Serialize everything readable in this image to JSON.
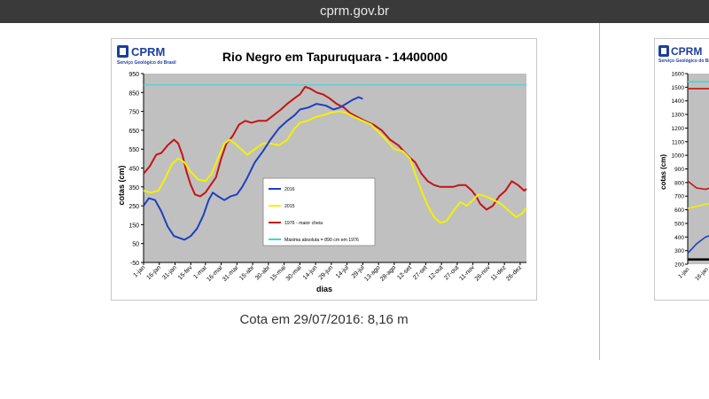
{
  "browser": {
    "url": "cprm.gov.br"
  },
  "logo": {
    "name": "CPRM",
    "subtitle": "Serviço Geológico do Brasil"
  },
  "caption": "Cota em 29/07/2016: 8,16 m",
  "colors": {
    "plot_bg": "#c0c0c0",
    "s2016": "#1f3fbf",
    "s2015": "#f2f200",
    "s1976": "#c41414",
    "smax": "#3fd6d6",
    "title": "#000000"
  },
  "chart_data": [
    {
      "type": "line",
      "title": "Rio Negro em Tapuruquara -  14400000",
      "xlabel": "dias",
      "ylabel": "cotas (cm)",
      "ylim": [
        -50,
        950
      ],
      "yticks": [
        -50,
        50,
        150,
        250,
        350,
        450,
        550,
        650,
        750,
        850,
        950
      ],
      "x_tick_labels": [
        "1-jan",
        "16-jan",
        "31-jan",
        "15-fev",
        "1-mar",
        "16-mar",
        "31-mar",
        "15-abr",
        "30-abr",
        "15-mai",
        "30-mai",
        "14-jun",
        "29-jun",
        "14-jul",
        "29-jul",
        "13-ago",
        "28-ago",
        "12-set",
        "27-set",
        "12-out",
        "27-out",
        "11-nov",
        "26-nov",
        "11-dez",
        "26-dez"
      ],
      "x_tick_days": [
        1,
        16,
        31,
        46,
        60,
        75,
        90,
        105,
        120,
        135,
        150,
        165,
        180,
        195,
        210,
        225,
        240,
        255,
        270,
        285,
        300,
        315,
        330,
        345,
        360
      ],
      "xlim": [
        1,
        366
      ],
      "grid": false,
      "legend_position": "inside-center",
      "series": [
        {
          "name": "2016",
          "color_key": "s2016",
          "points": [
            [
              1,
              250
            ],
            [
              6,
              290
            ],
            [
              12,
              280
            ],
            [
              18,
              220
            ],
            [
              24,
              140
            ],
            [
              30,
              90
            ],
            [
              35,
              80
            ],
            [
              40,
              70
            ],
            [
              46,
              90
            ],
            [
              52,
              130
            ],
            [
              58,
              200
            ],
            [
              63,
              280
            ],
            [
              67,
              320
            ],
            [
              72,
              300
            ],
            [
              78,
              280
            ],
            [
              84,
              300
            ],
            [
              90,
              310
            ],
            [
              95,
              350
            ],
            [
              100,
              400
            ],
            [
              107,
              480
            ],
            [
              115,
              540
            ],
            [
              122,
              600
            ],
            [
              130,
              660
            ],
            [
              138,
              700
            ],
            [
              145,
              730
            ],
            [
              150,
              760
            ],
            [
              158,
              770
            ],
            [
              166,
              790
            ],
            [
              175,
              780
            ],
            [
              182,
              760
            ],
            [
              188,
              770
            ],
            [
              194,
              790
            ],
            [
              200,
              810
            ],
            [
              206,
              825
            ],
            [
              210,
              816
            ]
          ]
        },
        {
          "name": "2015",
          "color_key": "s2015",
          "points": [
            [
              1,
              330
            ],
            [
              8,
              320
            ],
            [
              15,
              330
            ],
            [
              22,
              400
            ],
            [
              28,
              470
            ],
            [
              34,
              500
            ],
            [
              40,
              480
            ],
            [
              46,
              430
            ],
            [
              53,
              390
            ],
            [
              60,
              380
            ],
            [
              66,
              420
            ],
            [
              72,
              500
            ],
            [
              78,
              580
            ],
            [
              83,
              600
            ],
            [
              88,
              580
            ],
            [
              94,
              550
            ],
            [
              100,
              520
            ],
            [
              107,
              550
            ],
            [
              115,
              580
            ],
            [
              122,
              580
            ],
            [
              130,
              570
            ],
            [
              138,
              600
            ],
            [
              145,
              660
            ],
            [
              150,
              690
            ],
            [
              157,
              700
            ],
            [
              165,
              720
            ],
            [
              172,
              730
            ],
            [
              180,
              745
            ],
            [
              188,
              750
            ],
            [
              195,
              740
            ],
            [
              202,
              720
            ],
            [
              210,
              700
            ],
            [
              218,
              680
            ],
            [
              225,
              640
            ],
            [
              232,
              600
            ],
            [
              240,
              550
            ],
            [
              248,
              540
            ],
            [
              255,
              500
            ],
            [
              260,
              420
            ],
            [
              266,
              330
            ],
            [
              272,
              250
            ],
            [
              278,
              190
            ],
            [
              284,
              160
            ],
            [
              290,
              170
            ],
            [
              296,
              220
            ],
            [
              303,
              270
            ],
            [
              309,
              250
            ],
            [
              315,
              280
            ],
            [
              320,
              310
            ],
            [
              327,
              300
            ],
            [
              335,
              280
            ],
            [
              342,
              260
            ],
            [
              350,
              220
            ],
            [
              356,
              190
            ],
            [
              362,
              210
            ],
            [
              366,
              240
            ]
          ]
        },
        {
          "name": "1976 - maior cheia",
          "color_key": "s1976",
          "points": [
            [
              1,
              420
            ],
            [
              7,
              460
            ],
            [
              13,
              520
            ],
            [
              18,
              530
            ],
            [
              24,
              570
            ],
            [
              30,
              600
            ],
            [
              34,
              580
            ],
            [
              38,
              520
            ],
            [
              42,
              430
            ],
            [
              46,
              360
            ],
            [
              50,
              310
            ],
            [
              55,
              300
            ],
            [
              60,
              320
            ],
            [
              65,
              360
            ],
            [
              70,
              400
            ],
            [
              75,
              500
            ],
            [
              80,
              580
            ],
            [
              86,
              620
            ],
            [
              92,
              680
            ],
            [
              98,
              700
            ],
            [
              104,
              690
            ],
            [
              110,
              700
            ],
            [
              118,
              700
            ],
            [
              125,
              730
            ],
            [
              132,
              760
            ],
            [
              138,
              790
            ],
            [
              145,
              820
            ],
            [
              150,
              840
            ],
            [
              155,
              880
            ],
            [
              160,
              870
            ],
            [
              166,
              850
            ],
            [
              172,
              840
            ],
            [
              178,
              820
            ],
            [
              185,
              790
            ],
            [
              192,
              770
            ],
            [
              198,
              740
            ],
            [
              205,
              720
            ],
            [
              212,
              700
            ],
            [
              220,
              680
            ],
            [
              228,
              650
            ],
            [
              236,
              600
            ],
            [
              244,
              570
            ],
            [
              252,
              520
            ],
            [
              260,
              480
            ],
            [
              266,
              420
            ],
            [
              272,
              380
            ],
            [
              278,
              360
            ],
            [
              284,
              350
            ],
            [
              290,
              350
            ],
            [
              296,
              350
            ],
            [
              302,
              360
            ],
            [
              308,
              360
            ],
            [
              314,
              330
            ],
            [
              318,
              300
            ],
            [
              322,
              260
            ],
            [
              328,
              230
            ],
            [
              334,
              250
            ],
            [
              340,
              300
            ],
            [
              346,
              330
            ],
            [
              352,
              380
            ],
            [
              358,
              360
            ],
            [
              364,
              330
            ],
            [
              366,
              340
            ]
          ]
        },
        {
          "name": "Máxima absoluta = 890 cm em 1976",
          "color_key": "smax",
          "points": [
            [
              1,
              890
            ],
            [
              366,
              890
            ]
          ]
        }
      ]
    },
    {
      "type": "line",
      "title": "",
      "ylim": [
        200,
        1600
      ],
      "yticks": [
        200,
        300,
        400,
        500,
        600,
        700,
        800,
        900,
        1000,
        1100,
        1200,
        1300,
        1400,
        1500,
        1600
      ],
      "x_tick_labels": [
        "1-jan",
        "16-jan"
      ],
      "ylabel": "cotas (cm)",
      "series": [
        {
          "color_key": "smax",
          "points": [
            [
              1,
              1540
            ],
            [
              30,
              1540
            ]
          ]
        },
        {
          "color_key": "s1976",
          "points": [
            [
              1,
              1490
            ],
            [
              30,
              1490
            ]
          ]
        },
        {
          "color_key": "s2015",
          "points": [
            [
              1,
              610
            ],
            [
              10,
              630
            ],
            [
              20,
              650
            ],
            [
              30,
              670
            ]
          ]
        },
        {
          "color_key": "s1976",
          "points": [
            [
              1,
              810
            ],
            [
              8,
              760
            ],
            [
              15,
              750
            ],
            [
              22,
              770
            ],
            [
              30,
              790
            ]
          ]
        },
        {
          "color_key": "s2016",
          "points": [
            [
              1,
              280
            ],
            [
              8,
              350
            ],
            [
              15,
              400
            ],
            [
              22,
              420
            ],
            [
              30,
              450
            ]
          ]
        },
        {
          "color_key": "axis",
          "points": [
            [
              1,
              235
            ],
            [
              30,
              235
            ]
          ]
        }
      ]
    }
  ]
}
